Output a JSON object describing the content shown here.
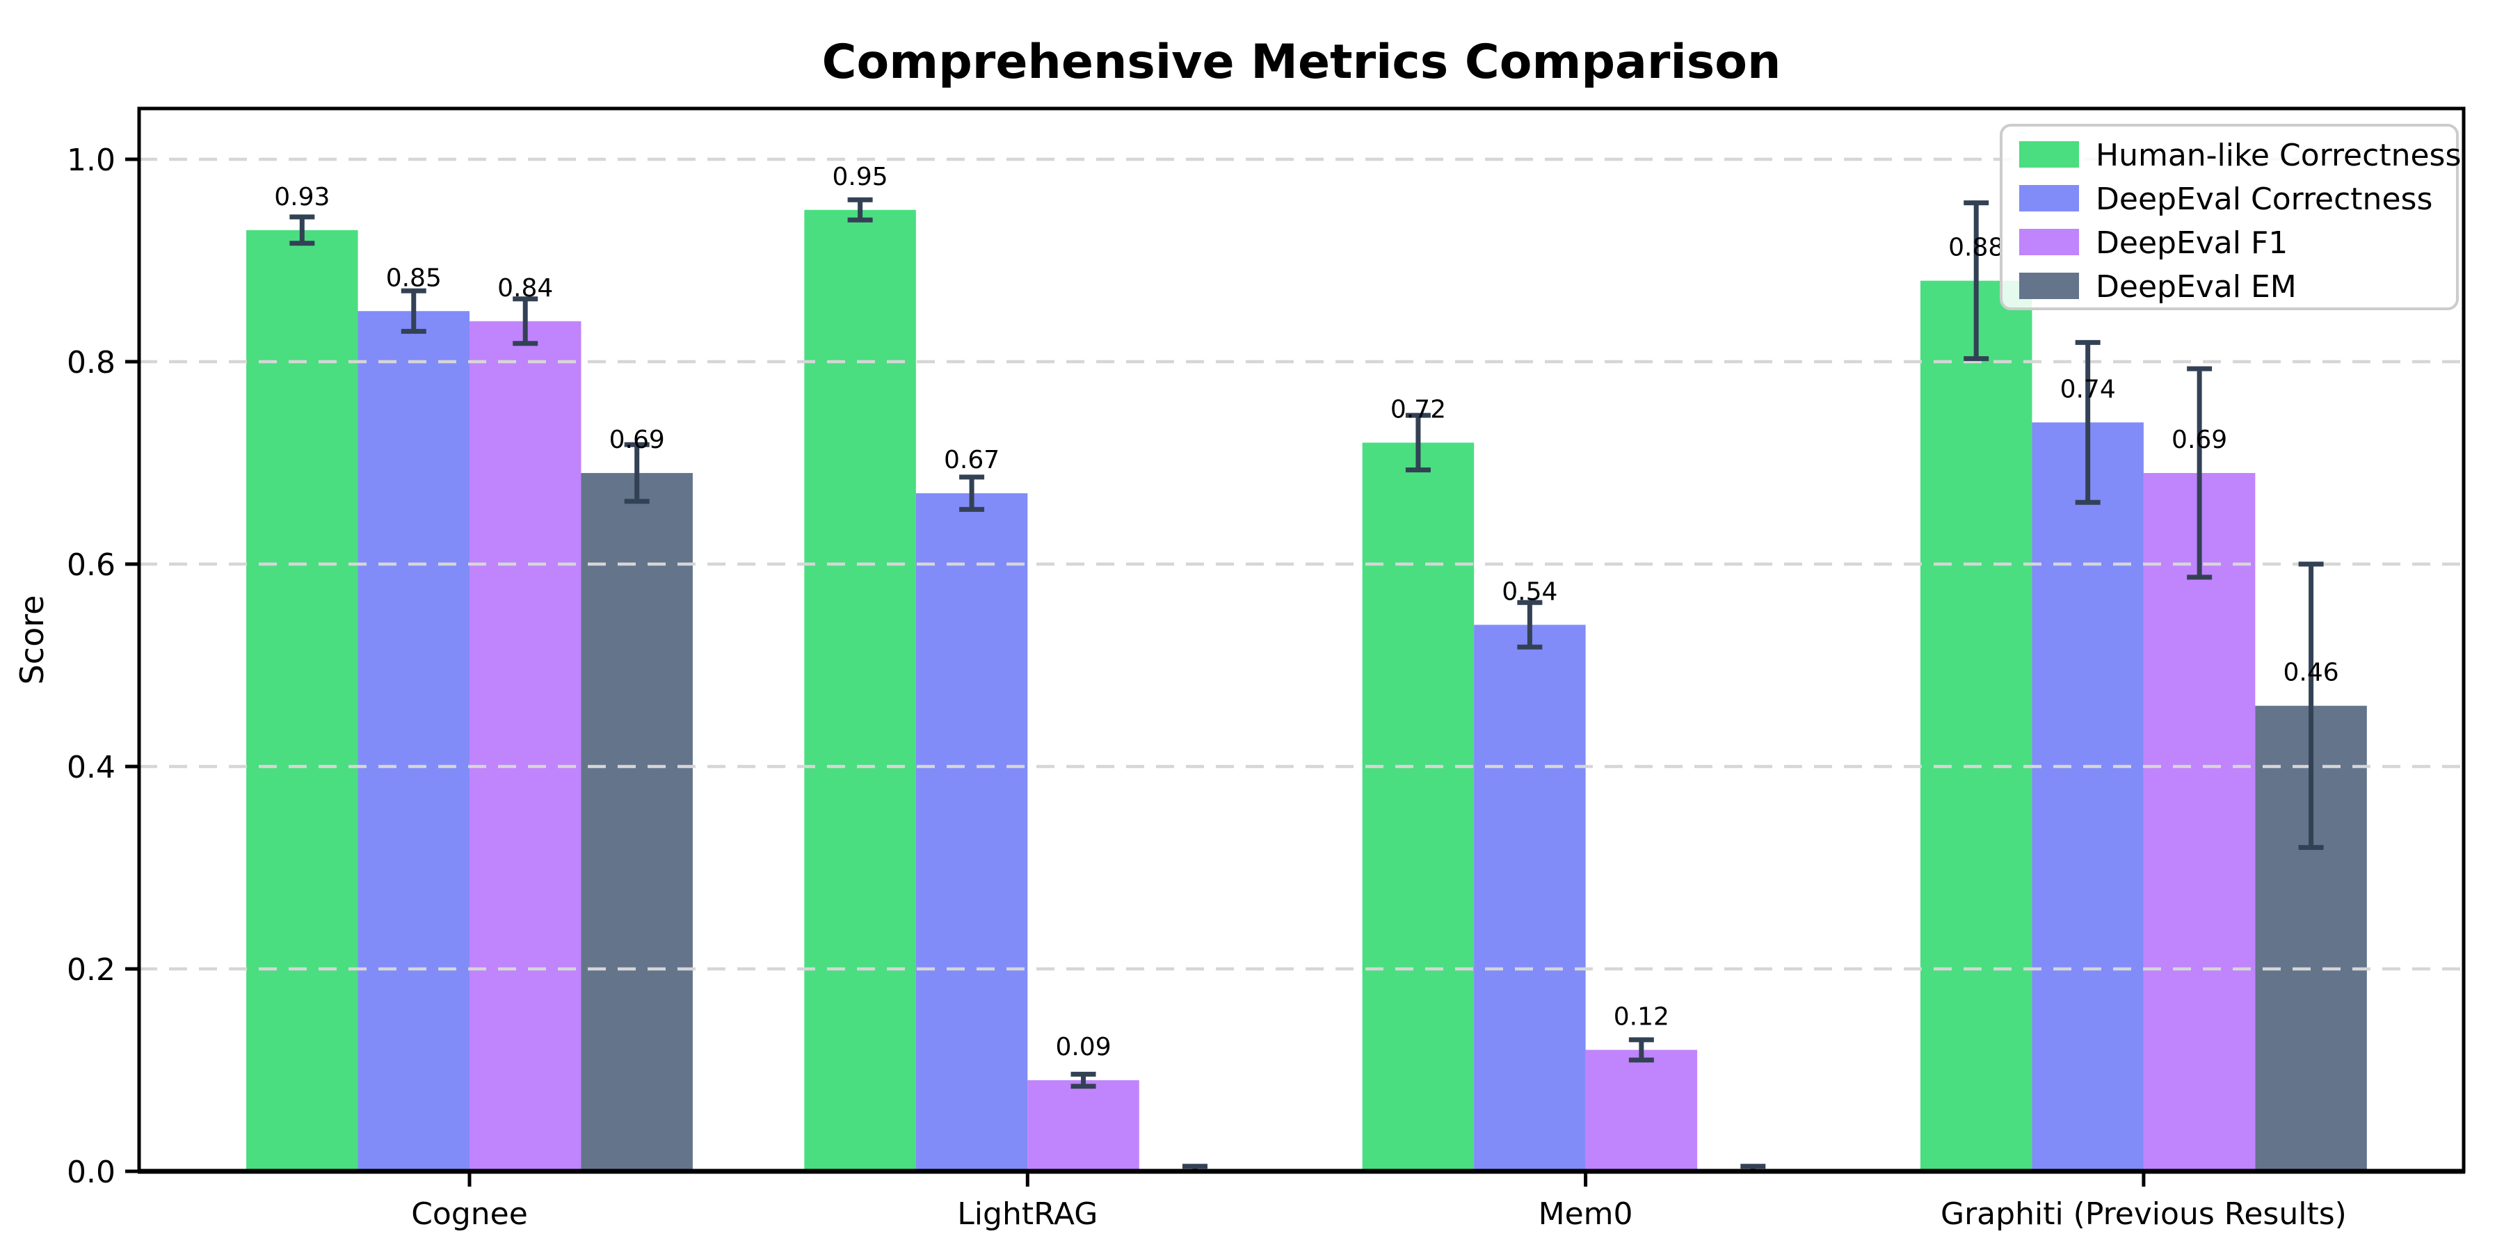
{
  "chart_data": {
    "type": "bar",
    "title": "Comprehensive Metrics Comparison",
    "ylabel": "Score",
    "xlabel": "",
    "categories": [
      "Cognee",
      "LightRAG",
      "Mem0",
      "Graphiti (Previous Results)"
    ],
    "series": [
      {
        "name": "Human-like Correctness",
        "color": "#4ade80",
        "values": [
          0.93,
          0.95,
          0.72,
          0.88
        ],
        "errors": [
          0.013,
          0.01,
          0.027,
          0.077
        ],
        "labels": [
          "0.93",
          "0.95",
          "0.72",
          "0.88"
        ]
      },
      {
        "name": "DeepEval Correctness",
        "color": "#818cf8",
        "values": [
          0.85,
          0.67,
          0.54,
          0.74
        ],
        "errors": [
          0.02,
          0.016,
          0.022,
          0.079
        ],
        "labels": [
          "0.85",
          "0.67",
          "0.54",
          "0.74"
        ]
      },
      {
        "name": "DeepEval F1",
        "color": "#c084fc",
        "values": [
          0.84,
          0.09,
          0.12,
          0.69
        ],
        "errors": [
          0.022,
          0.006,
          0.01,
          0.103
        ],
        "labels": [
          "0.84",
          "0.09",
          "0.12",
          "0.69"
        ]
      },
      {
        "name": "DeepEval EM",
        "color": "#64748b",
        "values": [
          0.69,
          0.0,
          0.0,
          0.46
        ],
        "errors": [
          0.028,
          0.005,
          0.005,
          0.14
        ],
        "labels": [
          "0.69",
          null,
          null,
          "0.46"
        ]
      }
    ],
    "error_bar_color": "#334155",
    "ytick_values": [
      0.0,
      0.2,
      0.4,
      0.6,
      0.8,
      1.0
    ],
    "ytick_labels": [
      "0.0",
      "0.2",
      "0.4",
      "0.6",
      "0.8",
      "1.0"
    ],
    "ylim": [
      0,
      1.05
    ],
    "grid": {
      "axis": "y",
      "style": "dashed",
      "color": "#d6d6d6",
      "on_top": true
    },
    "legend": {
      "position": "upper right"
    },
    "styling": {
      "bar_value_font_px": 36,
      "tick_font_px": 44,
      "legend_font_px": 44
    }
  }
}
